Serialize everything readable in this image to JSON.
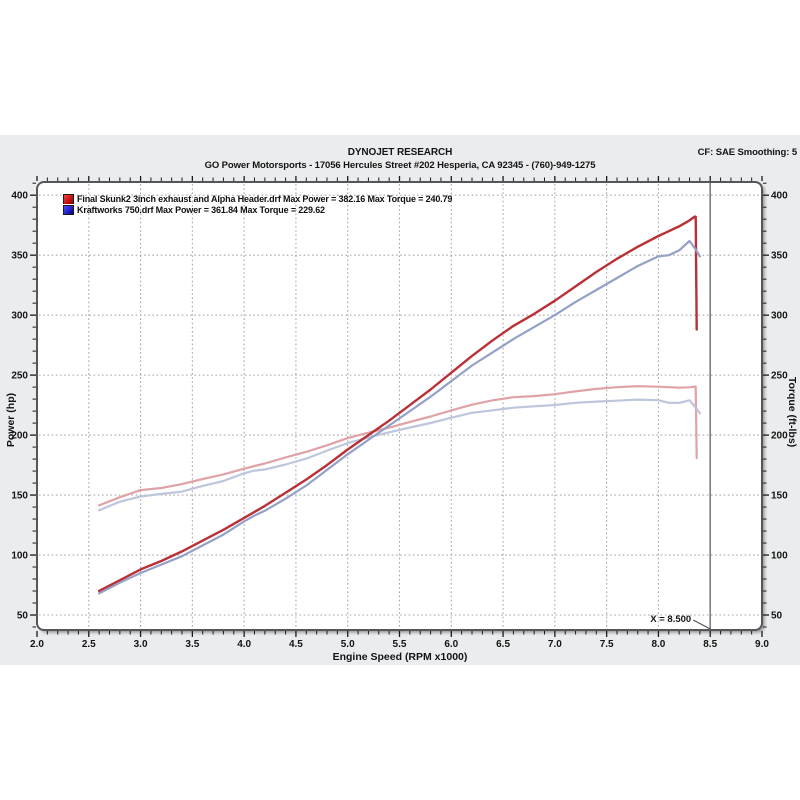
{
  "header": {
    "title": "DYNOJET RESEARCH",
    "subtitle": "GO Power Motorsports - 17056 Hercules Street #202 Hesperia, CA 92345 - (760)-949-1275",
    "settings": "CF: SAE  Smoothing: 5"
  },
  "legend": {
    "items": [
      {
        "swatch_color": "#d52727",
        "label": "Final Skunk2 3inch exhaust and Alpha Header.drf Max Power = 382.16 Max Torque = 240.79"
      },
      {
        "swatch_color": "#2b2bd0",
        "label": "Kraftworks 750.drf Max Power = 361.84 Max Torque = 229.62"
      }
    ]
  },
  "annotation": {
    "cursor_label": "X = 8.500",
    "cursor_x": 8.5
  },
  "colors": {
    "panel_bg": "#ebecee",
    "plot_bg": "#ffffff",
    "plot_border": "#55565a",
    "grid": "#a6a6a6",
    "tick": "#1a1a1a",
    "cursor": "#7d7d82",
    "red_power": "#b93036",
    "blue_power": "#94a0c6",
    "red_torque": "#dfa2a6",
    "blue_torque": "#bdc6dc"
  },
  "chart_data": {
    "type": "line",
    "title": "",
    "xlabel": "Engine Speed (RPM x1000)",
    "ylabel_left": "Power (hp)",
    "ylabel_right": "Torque (ft-lbs)",
    "xlim": [
      2.0,
      9.0
    ],
    "ylim": [
      37.5,
      411
    ],
    "xtick_step": 0.5,
    "xminor_step": 0.1,
    "ytick_step": 50,
    "yminor_step": 10,
    "ytick_min": 50,
    "ytick_max": 400,
    "grid": "dotted",
    "legend_position": "top-left-inside",
    "cursor_x": 8.5,
    "series": [
      {
        "name": "Final Skunk2 3inch exhaust and Alpha Header.drf Power",
        "axis": "power",
        "color_key": "red_power",
        "width": 2.4,
        "max": 382.16,
        "x": [
          2.6,
          2.8,
          3.0,
          3.2,
          3.4,
          3.6,
          3.8,
          4.0,
          4.1,
          4.2,
          4.4,
          4.6,
          4.8,
          5.0,
          5.2,
          5.4,
          5.6,
          5.8,
          6.0,
          6.2,
          6.4,
          6.6,
          6.8,
          7.0,
          7.2,
          7.4,
          7.6,
          7.8,
          8.0,
          8.1,
          8.2,
          8.3,
          8.35,
          8.36,
          8.37
        ],
        "y": [
          70,
          79,
          88,
          95,
          103,
          112,
          121,
          131,
          136,
          141,
          152,
          163,
          175,
          188,
          200,
          212,
          225,
          238,
          252,
          266,
          279,
          291,
          301,
          312,
          324,
          336,
          347,
          357,
          366,
          370,
          374,
          379,
          382.16,
          382,
          288
        ]
      },
      {
        "name": "Kraftworks 750.drf Power",
        "axis": "power",
        "color_key": "blue_power",
        "width": 2.2,
        "max": 361.84,
        "x": [
          2.6,
          2.8,
          3.0,
          3.2,
          3.4,
          3.6,
          3.8,
          4.0,
          4.1,
          4.2,
          4.4,
          4.6,
          4.8,
          5.0,
          5.2,
          5.4,
          5.6,
          5.8,
          6.0,
          6.2,
          6.4,
          6.6,
          6.8,
          7.0,
          7.2,
          7.4,
          7.6,
          7.8,
          8.0,
          8.1,
          8.2,
          8.3,
          8.35,
          8.4
        ],
        "y": [
          68,
          77,
          85,
          92,
          99,
          108,
          117,
          128,
          133,
          137,
          147,
          158,
          171,
          184,
          196,
          208,
          220,
          232,
          245,
          258,
          269,
          280,
          290,
          300,
          311,
          321,
          331,
          341,
          349,
          350,
          354,
          361.84,
          356,
          349
        ]
      },
      {
        "name": "Final Skunk2 3inch exhaust and Alpha Header.drf Torque",
        "axis": "torque",
        "color_key": "red_torque",
        "width": 2.2,
        "max": 240.79,
        "x": [
          2.6,
          2.8,
          3.0,
          3.2,
          3.4,
          3.6,
          3.8,
          4.0,
          4.1,
          4.2,
          4.4,
          4.6,
          4.8,
          5.0,
          5.2,
          5.4,
          5.6,
          5.8,
          6.0,
          6.2,
          6.4,
          6.6,
          6.8,
          7.0,
          7.2,
          7.4,
          7.6,
          7.8,
          8.0,
          8.1,
          8.2,
          8.3,
          8.35,
          8.36,
          8.37
        ],
        "y": [
          141.4,
          148.2,
          154.1,
          155.9,
          159.1,
          163.4,
          167.2,
          172.0,
          174.2,
          176.3,
          181.4,
          186.1,
          191.5,
          197.5,
          202.0,
          206.2,
          211.0,
          215.5,
          220.6,
          225.3,
          229.0,
          231.6,
          232.5,
          234.1,
          236.4,
          238.5,
          239.9,
          240.79,
          240.3,
          239.9,
          239.5,
          239.8,
          240.4,
          240.4,
          180.7
        ]
      },
      {
        "name": "Kraftworks 750.drf Torque",
        "axis": "torque",
        "color_key": "blue_torque",
        "width": 2.2,
        "max": 229.62,
        "x": [
          2.6,
          2.8,
          3.0,
          3.2,
          3.4,
          3.6,
          3.8,
          4.0,
          4.1,
          4.2,
          4.4,
          4.6,
          4.8,
          5.0,
          5.2,
          5.4,
          5.6,
          5.8,
          6.0,
          6.2,
          6.4,
          6.6,
          6.8,
          7.0,
          7.2,
          7.4,
          7.6,
          7.8,
          8.0,
          8.1,
          8.2,
          8.3,
          8.35,
          8.4
        ],
        "y": [
          137.3,
          144.5,
          148.8,
          151.0,
          152.9,
          157.6,
          161.7,
          168.1,
          170.4,
          171.3,
          175.5,
          180.4,
          187.1,
          193.3,
          198.0,
          202.3,
          206.3,
          210.1,
          214.5,
          218.6,
          220.7,
          222.8,
          224.0,
          225.1,
          226.9,
          227.9,
          228.7,
          229.62,
          229.1,
          226.9,
          226.8,
          229.0,
          223.9,
          218.2
        ]
      }
    ]
  }
}
